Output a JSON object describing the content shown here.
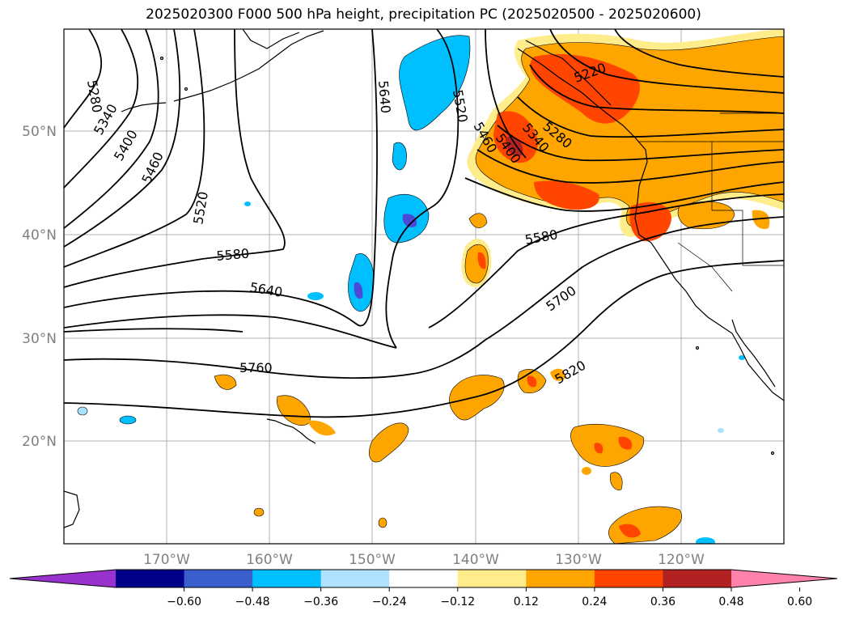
{
  "title": "2025020300 F000 500 hPa height, precipitation PC (2025020500 - 2025020600)",
  "map": {
    "lat_labels": [
      "50°N",
      "40°N",
      "30°N",
      "20°N"
    ],
    "lon_labels": [
      "170°W",
      "160°W",
      "150°W",
      "140°W",
      "130°W",
      "120°W"
    ],
    "contour_labels": [
      "5280",
      "5340",
      "5400",
      "5460",
      "5520",
      "5580",
      "5640",
      "5760",
      "5640",
      "5520",
      "5460",
      "5400",
      "5340",
      "5280",
      "5220",
      "5580",
      "5700",
      "5820"
    ],
    "colors": {
      "neg_strong": "#4a4ad8",
      "neg_mid": "#00bfff",
      "neg_light": "#a7e2ff",
      "pos_light": "#ffec8b",
      "pos_mid": "#ffa500",
      "pos_strong": "#ff4500",
      "pos_dark": "#b22222"
    }
  },
  "colorbar": {
    "ticks": [
      "−0.60",
      "−0.48",
      "−0.36",
      "−0.24",
      "−0.12",
      "0.12",
      "0.24",
      "0.36",
      "0.48",
      "0.60"
    ],
    "colors": [
      "#9932cc",
      "#00008b",
      "#3a5fcd",
      "#00bfff",
      "#b0e2ff",
      "#ffffff",
      "#ffec8b",
      "#ffa500",
      "#ff4500",
      "#b22222",
      "#ff82ab"
    ]
  }
}
